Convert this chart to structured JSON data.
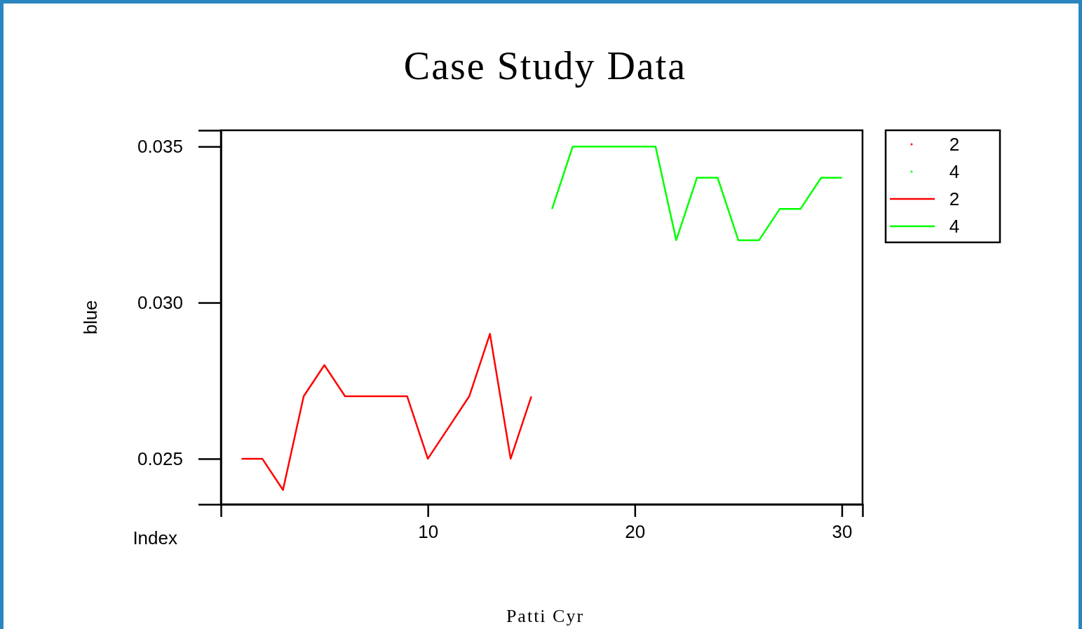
{
  "chart_data": {
    "type": "line",
    "title": "Case Study Data",
    "xlabel": "Index",
    "ylabel": "blue",
    "annotations": [
      "Patti Cyr"
    ],
    "series": [
      {
        "name": "2",
        "color": "#ff0000",
        "x": [
          1,
          2,
          3,
          4,
          5,
          6,
          7,
          8,
          9,
          10,
          11,
          12,
          13,
          14,
          15
        ],
        "values": [
          0.025,
          0.025,
          0.024,
          0.027,
          0.028,
          0.027,
          0.027,
          0.027,
          0.027,
          0.025,
          0.026,
          0.027,
          0.029,
          0.025,
          0.027
        ]
      },
      {
        "name": "4",
        "color": "#00ff00",
        "x": [
          16,
          17,
          18,
          19,
          20,
          21,
          22,
          23,
          24,
          25,
          26,
          27,
          28,
          29,
          30
        ],
        "values": [
          0.033,
          0.035,
          0.035,
          0.035,
          0.035,
          0.035,
          0.032,
          0.034,
          0.034,
          0.032,
          0.032,
          0.033,
          0.033,
          0.034,
          0.034
        ]
      }
    ],
    "xlim": [
      0,
      31
    ],
    "xticks": [
      10,
      20,
      30
    ],
    "ylim": [
      0.02354,
      0.03552
    ],
    "yticks": [
      {
        "value": 0.025,
        "label": "0.025"
      },
      {
        "value": 0.03,
        "label": "0.030"
      },
      {
        "value": 0.035,
        "label": "0.035"
      }
    ],
    "legend": "right",
    "grid": false,
    "marker": "none",
    "line_style": "solid"
  }
}
